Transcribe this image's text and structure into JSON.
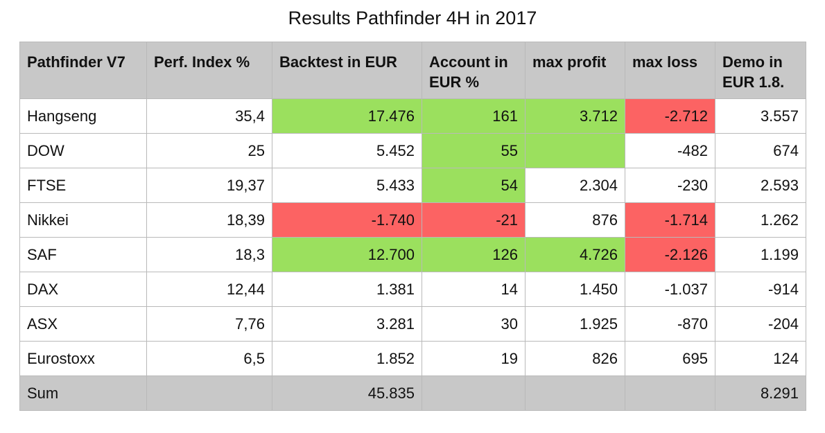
{
  "title": "Results Pathfinder 4H in 2017",
  "colors": {
    "header_bg": "#c8c8c8",
    "positive": "#9be05e",
    "negative": "#fc6363"
  },
  "headers": [
    "Pathfinder V7",
    "Perf. Index %",
    "Backtest in EUR",
    "Account in EUR %",
    "max profit",
    "max loss",
    "Demo in EUR 1.8."
  ],
  "rows": [
    {
      "name": "Hangseng",
      "perf": "35,4",
      "backtest": "17.476",
      "account": "161",
      "max_profit": "3.712",
      "max_loss": "-2.712",
      "demo": "3.557"
    },
    {
      "name": "DOW",
      "perf": "25",
      "backtest": "5.452",
      "account": "55",
      "max_profit": "",
      "max_loss": "-482",
      "demo": "674"
    },
    {
      "name": "FTSE",
      "perf": "19,37",
      "backtest": "5.433",
      "account": "54",
      "max_profit": "2.304",
      "max_loss": "-230",
      "demo": "2.593"
    },
    {
      "name": "Nikkei",
      "perf": "18,39",
      "backtest": "-1.740",
      "account": "-21",
      "max_profit": "876",
      "max_loss": "-1.714",
      "demo": "1.262"
    },
    {
      "name": "SAF",
      "perf": "18,3",
      "backtest": "12.700",
      "account": "126",
      "max_profit": "4.726",
      "max_loss": "-2.126",
      "demo": "1.199"
    },
    {
      "name": "DAX",
      "perf": "12,44",
      "backtest": "1.381",
      "account": "14",
      "max_profit": "1.450",
      "max_loss": "-1.037",
      "demo": "-914"
    },
    {
      "name": "ASX",
      "perf": "7,76",
      "backtest": "3.281",
      "account": "30",
      "max_profit": "1.925",
      "max_loss": "-870",
      "demo": "-204"
    },
    {
      "name": "Eurostoxx",
      "perf": "6,5",
      "backtest": "1.852",
      "account": "19",
      "max_profit": "826",
      "max_loss": "695",
      "demo": "124"
    }
  ],
  "sum": {
    "label": "Sum",
    "backtest": "45.835",
    "demo": "8.291"
  }
}
